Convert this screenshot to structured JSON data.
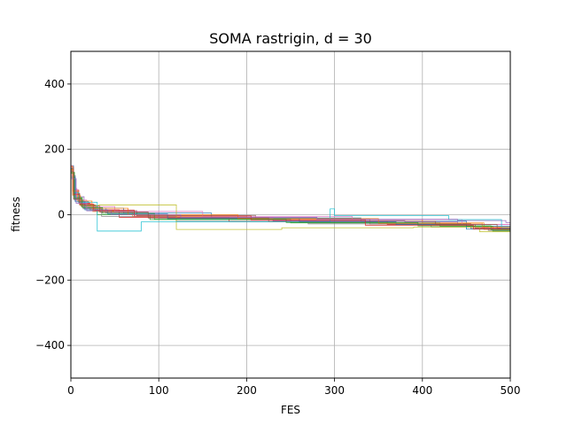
{
  "chart_data": {
    "type": "line",
    "title": "SOMA rastrigin, d = 30",
    "xlabel": "FES",
    "ylabel": "fitness",
    "xlim": [
      0,
      500
    ],
    "ylim": [
      -500,
      500
    ],
    "xticks": [
      0,
      100,
      200,
      300,
      400,
      500
    ],
    "xtick_labels": [
      "0",
      "100",
      "200",
      "300",
      "400",
      "500"
    ],
    "yticks": [
      -400,
      -200,
      0,
      200,
      400
    ],
    "ytick_labels": [
      "−400",
      "−200",
      "0",
      "200",
      "400"
    ],
    "grid": true,
    "legend": "none",
    "series": [
      {
        "color": "#1f77b4",
        "x": [
          0,
          3,
          8,
          20,
          60,
          160,
          330,
          450,
          500
        ],
        "y": [
          150,
          70,
          40,
          20,
          5,
          -10,
          -20,
          -35,
          -45
        ]
      },
      {
        "color": "#ff7f0e",
        "x": [
          0,
          2,
          10,
          25,
          70,
          200,
          400,
          470,
          500
        ],
        "y": [
          140,
          60,
          30,
          10,
          -5,
          -15,
          -25,
          -45,
          -55
        ]
      },
      {
        "color": "#2ca02c",
        "x": [
          0,
          4,
          12,
          30,
          90,
          250,
          420,
          480,
          500
        ],
        "y": [
          130,
          50,
          25,
          0,
          -15,
          -25,
          -35,
          -50,
          -58
        ]
      },
      {
        "color": "#d62728",
        "x": [
          0,
          3,
          9,
          22,
          55,
          180,
          360,
          460,
          500
        ],
        "y": [
          145,
          75,
          35,
          15,
          -8,
          -20,
          -30,
          -40,
          -48
        ]
      },
      {
        "color": "#9467bd",
        "x": [
          0,
          5,
          15,
          40,
          100,
          230,
          380,
          440,
          500
        ],
        "y": [
          120,
          55,
          20,
          5,
          -10,
          -18,
          -22,
          -30,
          -38
        ]
      },
      {
        "color": "#8c564b",
        "x": [
          0,
          3,
          10,
          28,
          75,
          210,
          340,
          455,
          500
        ],
        "y": [
          135,
          65,
          30,
          12,
          -2,
          -12,
          -28,
          -42,
          -52
        ]
      },
      {
        "color": "#e377c2",
        "x": [
          0,
          2,
          7,
          18,
          50,
          150,
          320,
          445,
          500
        ],
        "y": [
          150,
          80,
          45,
          25,
          10,
          -5,
          -15,
          -30,
          -40
        ]
      },
      {
        "color": "#7f7f7f",
        "x": [
          0,
          4,
          14,
          35,
          120,
          270,
          410,
          475,
          500
        ],
        "y": [
          125,
          45,
          18,
          -5,
          -20,
          -28,
          -38,
          -48,
          -60
        ]
      },
      {
        "color": "#bcbd22",
        "x": [
          0,
          3,
          11,
          32,
          120,
          240,
          390,
          465,
          500
        ],
        "y": [
          138,
          58,
          28,
          30,
          -45,
          -40,
          -38,
          -52,
          -62
        ]
      },
      {
        "color": "#17becf",
        "x": [
          0,
          3,
          9,
          30,
          80,
          295,
          300,
          430,
          490,
          500
        ],
        "y": [
          142,
          68,
          38,
          -50,
          -22,
          18,
          -3,
          -15,
          -40,
          -85
        ]
      },
      {
        "color": "#1f77b4",
        "x": [
          0,
          5,
          16,
          42,
          110,
          260,
          370,
          450,
          500
        ],
        "y": [
          115,
          40,
          15,
          2,
          -12,
          -22,
          -30,
          -44,
          -50
        ]
      },
      {
        "color": "#ff7f0e",
        "x": [
          0,
          2,
          8,
          24,
          65,
          190,
          350,
          468,
          500
        ],
        "y": [
          148,
          72,
          42,
          20,
          0,
          -12,
          -26,
          -38,
          -46
        ]
      },
      {
        "color": "#2ca02c",
        "x": [
          0,
          4,
          13,
          36,
          95,
          245,
          395,
          478,
          500
        ],
        "y": [
          128,
          52,
          22,
          4,
          -14,
          -24,
          -34,
          -46,
          -56
        ]
      },
      {
        "color": "#d62728",
        "x": [
          0,
          3,
          10,
          26,
          72,
          205,
          335,
          458,
          500
        ],
        "y": [
          140,
          62,
          32,
          14,
          -4,
          -16,
          -32,
          -44,
          -54
        ]
      },
      {
        "color": "#9467bd",
        "x": [
          0,
          6,
          18,
          46,
          125,
          280,
          440,
          495,
          500
        ],
        "y": [
          110,
          35,
          12,
          0,
          -8,
          -14,
          -18,
          -24,
          -28
        ]
      },
      {
        "color": "#8c564b",
        "x": [
          0,
          3,
          12,
          33,
          88,
          225,
          415,
          485,
          500
        ],
        "y": [
          132,
          48,
          26,
          8,
          -10,
          -20,
          -30,
          -42,
          -50
        ]
      }
    ]
  }
}
